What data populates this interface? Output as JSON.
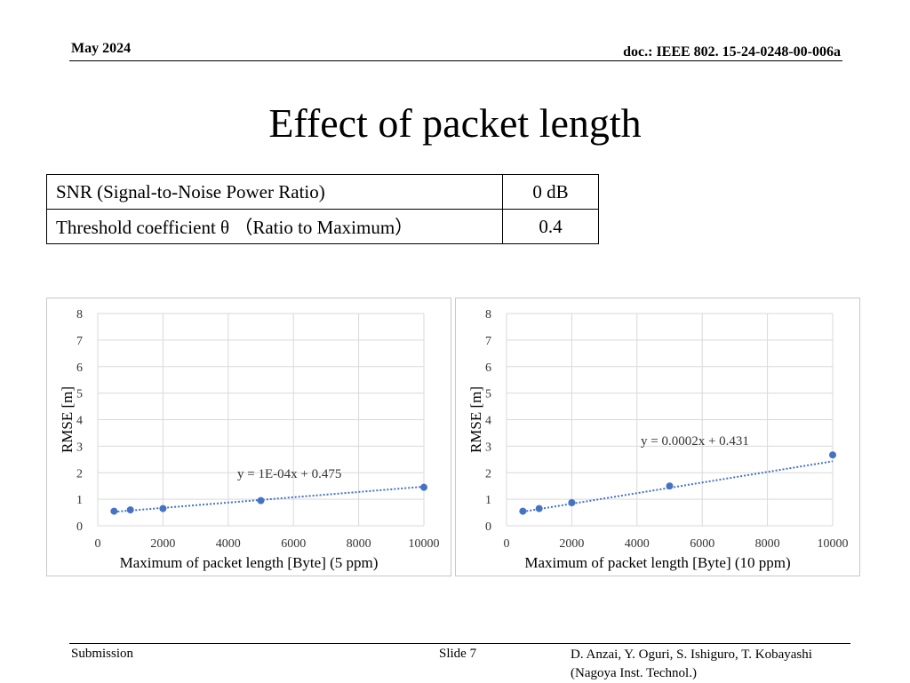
{
  "header": {
    "date": "May 2024",
    "doc": "doc.: IEEE 802. 15-24-0248-00-006a"
  },
  "title": "Effect of packet length",
  "params_table": [
    {
      "label": "SNR (Signal-to-Noise Power Ratio)",
      "value": "0 dB"
    },
    {
      "label": "Threshold coefficient θ （Ratio to Maximum）",
      "value": "0.4"
    }
  ],
  "chart_data": [
    {
      "type": "scatter",
      "title": "",
      "xlabel": "Maximum  of packet  length [Byte]  (5 ppm)",
      "ylabel": "RMSE [m]",
      "xlim": [
        0,
        10000
      ],
      "ylim": [
        0,
        8
      ],
      "xticks": [
        0,
        2000,
        4000,
        6000,
        8000,
        10000
      ],
      "yticks": [
        0,
        1,
        2,
        3,
        4,
        5,
        6,
        7,
        8
      ],
      "grid": true,
      "series": [
        {
          "x": [
            500,
            1000,
            2000,
            5000,
            10000
          ],
          "y": [
            0.55,
            0.6,
            0.65,
            0.95,
            1.45
          ]
        }
      ],
      "trendline": {
        "slope": 0.0001,
        "intercept": 0.475,
        "label": "y = 1E-04x  + 0.475"
      },
      "color": "#4472c4"
    },
    {
      "type": "scatter",
      "title": "",
      "xlabel": "Maximum  of packet  length [Byte]  (10 ppm)",
      "ylabel": "RMSE [m]",
      "xlim": [
        0,
        10000
      ],
      "ylim": [
        0,
        8
      ],
      "xticks": [
        0,
        2000,
        4000,
        6000,
        8000,
        10000
      ],
      "yticks": [
        0,
        1,
        2,
        3,
        4,
        5,
        6,
        7,
        8
      ],
      "grid": true,
      "series": [
        {
          "x": [
            500,
            1000,
            2000,
            5000,
            10000
          ],
          "y": [
            0.55,
            0.65,
            0.87,
            1.5,
            2.67
          ]
        }
      ],
      "trendline": {
        "slope": 0.0002,
        "intercept": 0.431,
        "label": "y = 0.0002x  + 0.431"
      },
      "color": "#4472c4"
    }
  ],
  "footer": {
    "submission": "Submission",
    "slide": "Slide 7",
    "authors_line1": "D. Anzai, Y. Oguri, S. Ishiguro,  T. Kobayashi",
    "authors_line2": "(Nagoya Inst. Technol.)"
  }
}
